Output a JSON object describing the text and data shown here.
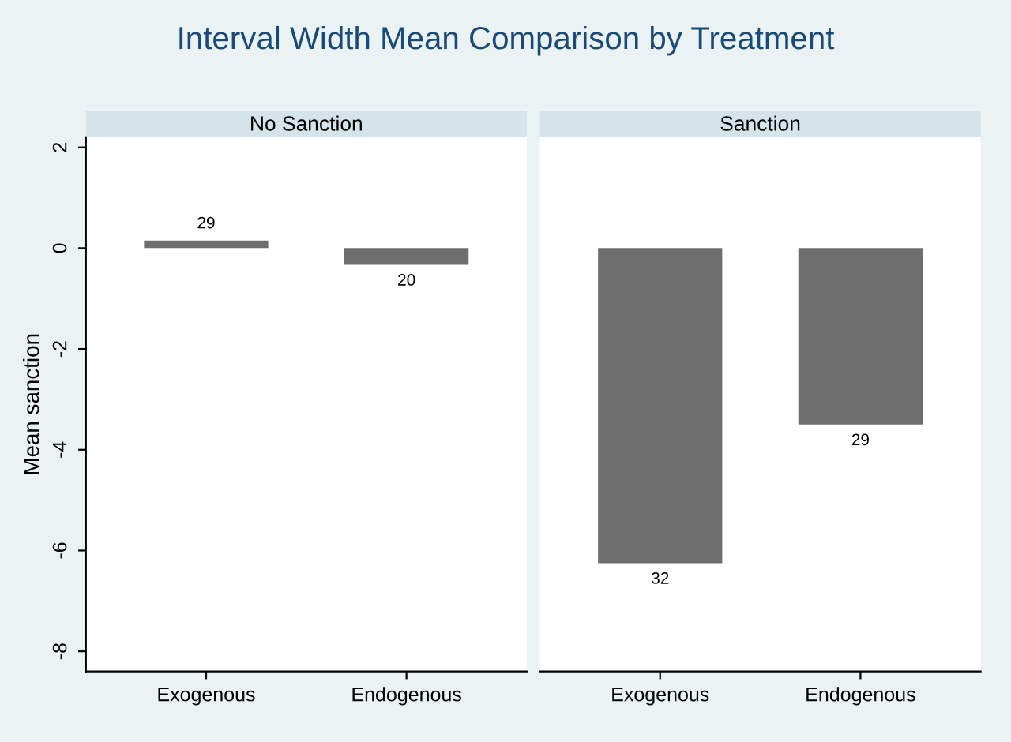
{
  "chart_data": [
    {
      "type": "bar",
      "title": "Interval Width Mean Comparison by Treatment",
      "subtitle": "No Sanction",
      "ylabel": "Mean sanction",
      "categories": [
        "Exogenous",
        "Endogenous"
      ],
      "values": [
        0.15,
        -0.33
      ],
      "color": "#6e6e6e",
      "ylim": [
        -8.4,
        2.2
      ],
      "yticks": [
        -8,
        -6,
        -4,
        -2,
        0,
        2
      ],
      "annotations": [
        {
          "text": "29",
          "x": "Exogenous",
          "y": 0.15
        },
        {
          "text": "20",
          "x": "Endogenous",
          "y": -0.33
        }
      ]
    },
    {
      "type": "bar",
      "subtitle": "Sanction",
      "categories": [
        "Exogenous",
        "Endogenous"
      ],
      "values": [
        -6.25,
        -3.5
      ],
      "color": "#6e6e6e",
      "ylim": [
        -8.4,
        2.2
      ],
      "yticks": [
        -8,
        -6,
        -4,
        -2,
        0,
        2
      ],
      "tick_labels": "x",
      "annotations": [
        {
          "text": "32",
          "x": "Exogenous",
          "y": -6.25
        },
        {
          "text": "29",
          "x": "Endogenous",
          "y": -3.5
        }
      ]
    }
  ]
}
